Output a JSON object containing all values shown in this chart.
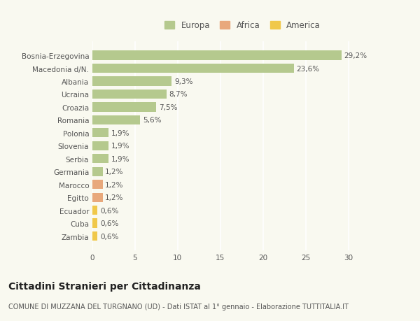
{
  "categories": [
    "Bosnia-Erzegovina",
    "Macedonia d/N.",
    "Albania",
    "Ucraina",
    "Croazia",
    "Romania",
    "Polonia",
    "Slovenia",
    "Serbia",
    "Germania",
    "Marocco",
    "Egitto",
    "Ecuador",
    "Cuba",
    "Zambia"
  ],
  "values": [
    29.2,
    23.6,
    9.3,
    8.7,
    7.5,
    5.6,
    1.9,
    1.9,
    1.9,
    1.2,
    1.2,
    1.2,
    0.6,
    0.6,
    0.6
  ],
  "labels": [
    "29,2%",
    "23,6%",
    "9,3%",
    "8,7%",
    "7,5%",
    "5,6%",
    "1,9%",
    "1,9%",
    "1,9%",
    "1,2%",
    "1,2%",
    "1,2%",
    "0,6%",
    "0,6%",
    "0,6%"
  ],
  "continent": [
    "Europa",
    "Europa",
    "Europa",
    "Europa",
    "Europa",
    "Europa",
    "Europa",
    "Europa",
    "Europa",
    "Europa",
    "Africa",
    "Africa",
    "America",
    "America",
    "America"
  ],
  "colors": {
    "Europa": "#b5c98e",
    "Africa": "#e8a87c",
    "America": "#f0c84a"
  },
  "legend_colors": {
    "Europa": "#b5c98e",
    "Africa": "#e8a87c",
    "America": "#f0c84a"
  },
  "xlim": [
    0,
    32
  ],
  "xticks": [
    0,
    5,
    10,
    15,
    20,
    25,
    30
  ],
  "title": "Cittadini Stranieri per Cittadinanza",
  "subtitle": "COMUNE DI MUZZANA DEL TURGNANO (UD) - Dati ISTAT al 1° gennaio - Elaborazione TUTTITALIA.IT",
  "background_color": "#f9f9f0",
  "grid_color": "#ffffff",
  "bar_height": 0.72,
  "label_fontsize": 7.5,
  "tick_fontsize": 7.5,
  "title_fontsize": 10,
  "subtitle_fontsize": 7,
  "legend_fontsize": 8.5
}
